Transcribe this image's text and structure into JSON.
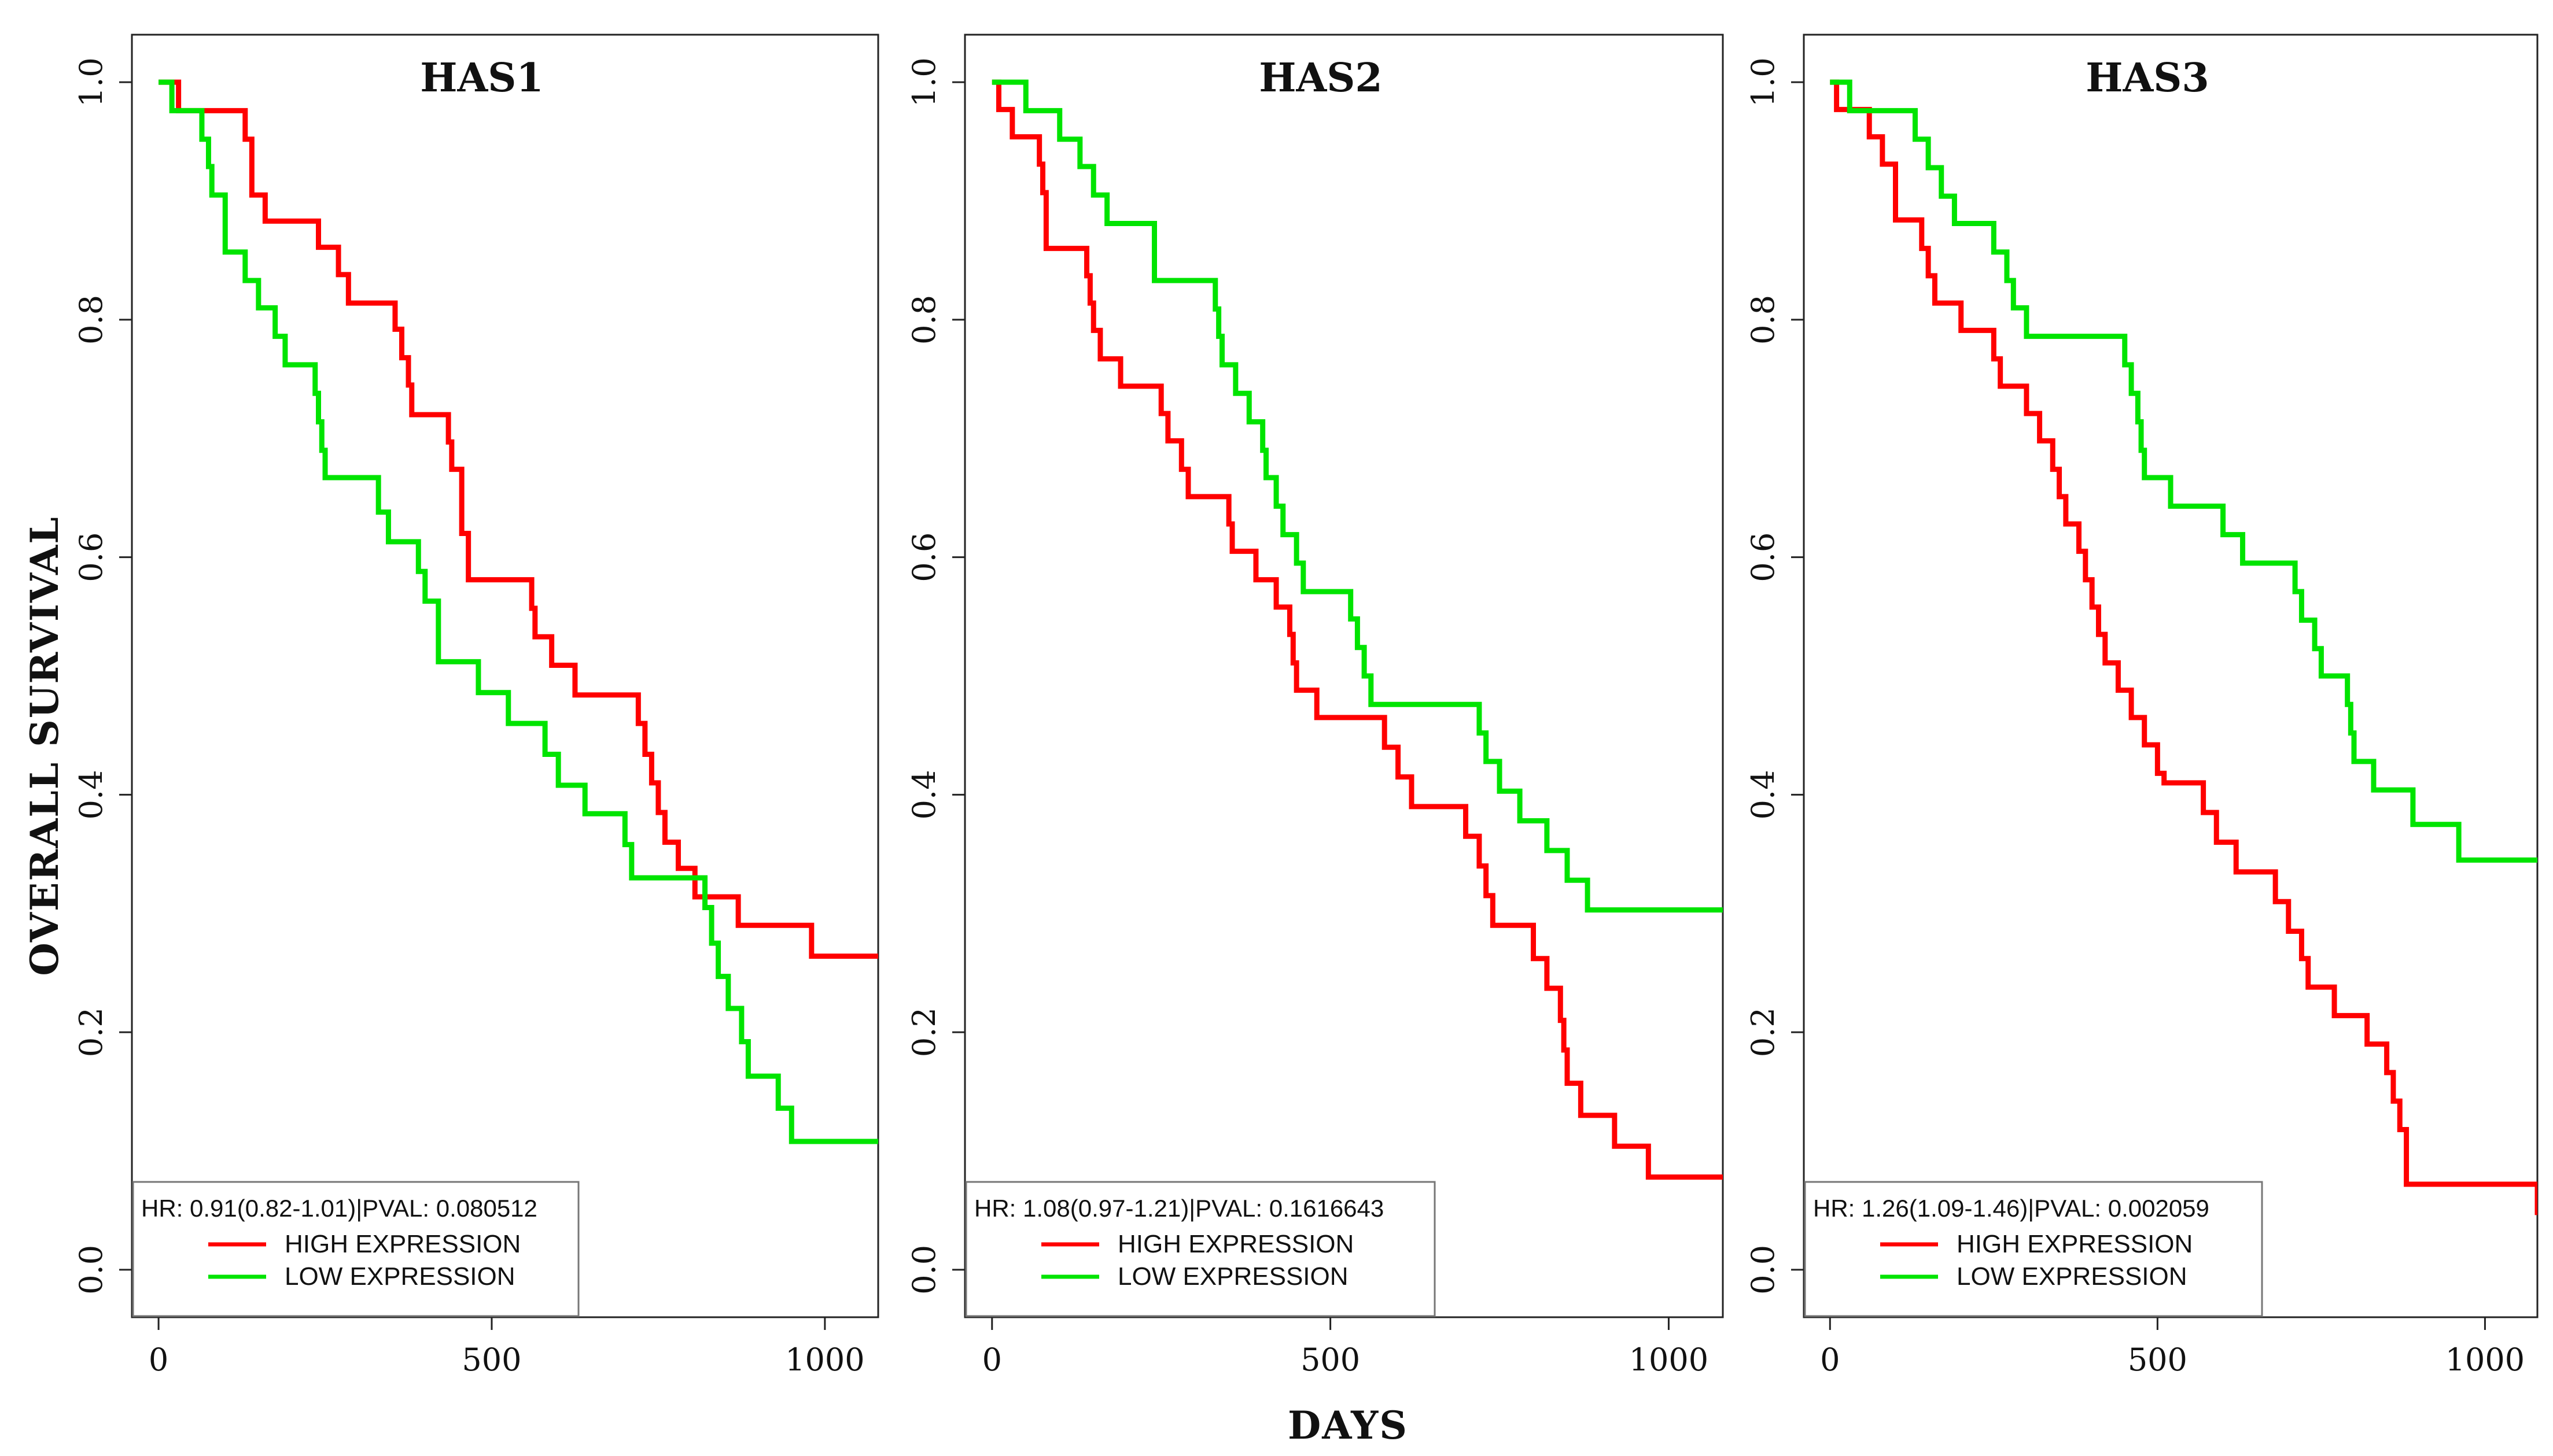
{
  "chart_data": [
    {
      "type": "line",
      "step": true,
      "title": "HAS1",
      "xlabel": "DAYS",
      "ylabel": "OVERALL SURVIVAL",
      "xlim": [
        -40,
        1080
      ],
      "ylim": [
        -0.04,
        1.04
      ],
      "xticks": [
        0,
        500,
        1000
      ],
      "yticks": [
        0.0,
        0.2,
        0.4,
        0.6,
        0.8,
        1.0
      ],
      "legend": {
        "position": "bottom-left",
        "hr_text": "HR: 0.91(0.82-1.01)|PVAL: 0.080512",
        "entries": [
          "HIGH EXPRESSION",
          "LOW EXPRESSION"
        ]
      },
      "series": [
        {
          "name": "HIGH EXPRESSION",
          "color": "#ff0000",
          "x": [
            0,
            30,
            55,
            130,
            140,
            160,
            240,
            270,
            285,
            355,
            365,
            375,
            380,
            420,
            435,
            440,
            455,
            465,
            510,
            535,
            560,
            565,
            590,
            610,
            625,
            650,
            720,
            730,
            740,
            750,
            760,
            780,
            805,
            820,
            840,
            870,
            945,
            980,
            1080
          ],
          "y": [
            1.0,
            0.976,
            0.976,
            0.952,
            0.905,
            0.883,
            0.861,
            0.838,
            0.814,
            0.792,
            0.768,
            0.745,
            0.72,
            0.72,
            0.697,
            0.674,
            0.62,
            0.581,
            0.581,
            0.581,
            0.557,
            0.533,
            0.509,
            0.509,
            0.484,
            0.484,
            0.46,
            0.434,
            0.41,
            0.385,
            0.36,
            0.338,
            0.314,
            0.314,
            0.314,
            0.29,
            0.29,
            0.264,
            0.264
          ]
        },
        {
          "name": "LOW EXPRESSION",
          "color": "#00e400",
          "x": [
            0,
            20,
            50,
            65,
            75,
            80,
            100,
            130,
            150,
            175,
            190,
            235,
            240,
            245,
            250,
            320,
            330,
            345,
            390,
            400,
            420,
            480,
            510,
            525,
            580,
            600,
            640,
            680,
            700,
            710,
            780,
            820,
            830,
            840,
            855,
            875,
            885,
            930,
            950,
            1080
          ],
          "y": [
            1.0,
            0.976,
            0.976,
            0.952,
            0.929,
            0.905,
            0.857,
            0.833,
            0.81,
            0.786,
            0.762,
            0.738,
            0.714,
            0.69,
            0.667,
            0.667,
            0.638,
            0.613,
            0.588,
            0.563,
            0.512,
            0.486,
            0.486,
            0.46,
            0.434,
            0.408,
            0.384,
            0.384,
            0.358,
            0.33,
            0.33,
            0.305,
            0.275,
            0.247,
            0.22,
            0.192,
            0.163,
            0.136,
            0.108,
            0.108
          ]
        }
      ]
    },
    {
      "type": "line",
      "step": true,
      "title": "HAS2",
      "xlabel": "DAYS",
      "ylabel": "",
      "xlim": [
        -40,
        1080
      ],
      "ylim": [
        -0.04,
        1.04
      ],
      "xticks": [
        0,
        500,
        1000
      ],
      "yticks": [
        0.0,
        0.2,
        0.4,
        0.6,
        0.8,
        1.0
      ],
      "legend": {
        "position": "bottom-left",
        "hr_text": "HR: 1.08(0.97-1.21)|PVAL: 0.1616643",
        "entries": [
          "HIGH EXPRESSION",
          "LOW EXPRESSION"
        ]
      },
      "series": [
        {
          "name": "HIGH EXPRESSION",
          "color": "#ff0000",
          "x": [
            0,
            10,
            30,
            70,
            75,
            80,
            140,
            145,
            150,
            160,
            190,
            250,
            260,
            280,
            290,
            320,
            350,
            355,
            370,
            390,
            400,
            420,
            440,
            445,
            450,
            480,
            580,
            600,
            620,
            650,
            700,
            720,
            730,
            740,
            780,
            800,
            820,
            840,
            845,
            850,
            870,
            890,
            920,
            970,
            1000,
            1080
          ],
          "y": [
            1.0,
            0.977,
            0.954,
            0.931,
            0.907,
            0.86,
            0.837,
            0.814,
            0.791,
            0.767,
            0.744,
            0.721,
            0.698,
            0.674,
            0.651,
            0.651,
            0.628,
            0.605,
            0.605,
            0.581,
            0.581,
            0.558,
            0.535,
            0.511,
            0.488,
            0.465,
            0.44,
            0.415,
            0.39,
            0.39,
            0.365,
            0.34,
            0.315,
            0.29,
            0.29,
            0.262,
            0.237,
            0.21,
            0.185,
            0.157,
            0.13,
            0.13,
            0.104,
            0.078,
            0.078,
            0.078
          ]
        },
        {
          "name": "LOW EXPRESSION",
          "color": "#00e400",
          "x": [
            0,
            50,
            100,
            110,
            130,
            150,
            170,
            240,
            250,
            300,
            330,
            335,
            340,
            360,
            380,
            400,
            405,
            420,
            430,
            450,
            460,
            530,
            540,
            550,
            560,
            570,
            720,
            730,
            750,
            780,
            820,
            850,
            880,
            1080
          ],
          "y": [
            1.0,
            0.976,
            0.952,
            0.952,
            0.929,
            0.905,
            0.881,
            0.833,
            0.833,
            0.833,
            0.809,
            0.786,
            0.762,
            0.738,
            0.714,
            0.69,
            0.667,
            0.643,
            0.619,
            0.595,
            0.571,
            0.548,
            0.524,
            0.5,
            0.476,
            0.476,
            0.452,
            0.428,
            0.403,
            0.378,
            0.353,
            0.328,
            0.303,
            0.303
          ]
        }
      ]
    },
    {
      "type": "line",
      "step": true,
      "title": "HAS3",
      "xlabel": "DAYS",
      "ylabel": "",
      "xlim": [
        -40,
        1080
      ],
      "ylim": [
        -0.04,
        1.04
      ],
      "xticks": [
        0,
        500,
        1000
      ],
      "yticks": [
        0.0,
        0.2,
        0.4,
        0.6,
        0.8,
        1.0
      ],
      "legend": {
        "position": "bottom-left",
        "hr_text": "HR: 1.26(1.09-1.46)|PVAL: 0.002059",
        "entries": [
          "HIGH EXPRESSION",
          "LOW EXPRESSION"
        ]
      },
      "series": [
        {
          "name": "HIGH EXPRESSION",
          "color": "#ff0000",
          "x": [
            0,
            10,
            50,
            60,
            80,
            100,
            140,
            150,
            160,
            200,
            250,
            260,
            300,
            320,
            330,
            340,
            350,
            360,
            380,
            390,
            400,
            410,
            420,
            440,
            460,
            480,
            500,
            510,
            560,
            570,
            590,
            620,
            680,
            700,
            720,
            730,
            770,
            820,
            840,
            850,
            860,
            870,
            880,
            950,
            1080
          ],
          "y": [
            1.0,
            0.977,
            0.977,
            0.954,
            0.931,
            0.884,
            0.86,
            0.837,
            0.814,
            0.791,
            0.767,
            0.744,
            0.721,
            0.698,
            0.698,
            0.674,
            0.651,
            0.628,
            0.605,
            0.581,
            0.558,
            0.535,
            0.511,
            0.488,
            0.465,
            0.442,
            0.418,
            0.41,
            0.41,
            0.385,
            0.36,
            0.335,
            0.31,
            0.285,
            0.262,
            0.238,
            0.214,
            0.19,
            0.19,
            0.166,
            0.142,
            0.118,
            0.072,
            0.072,
            0.046
          ]
        },
        {
          "name": "LOW EXPRESSION",
          "color": "#00e400",
          "x": [
            0,
            30,
            80,
            130,
            150,
            170,
            190,
            220,
            250,
            270,
            280,
            300,
            420,
            450,
            460,
            470,
            475,
            480,
            520,
            560,
            600,
            630,
            710,
            720,
            740,
            750,
            790,
            795,
            800,
            830,
            890,
            950,
            960,
            1080
          ],
          "y": [
            1.0,
            0.976,
            0.976,
            0.952,
            0.928,
            0.904,
            0.881,
            0.881,
            0.857,
            0.833,
            0.81,
            0.786,
            0.786,
            0.762,
            0.738,
            0.714,
            0.69,
            0.667,
            0.643,
            0.643,
            0.619,
            0.595,
            0.571,
            0.547,
            0.523,
            0.5,
            0.476,
            0.452,
            0.428,
            0.404,
            0.375,
            0.375,
            0.345,
            0.345
          ]
        }
      ]
    }
  ]
}
